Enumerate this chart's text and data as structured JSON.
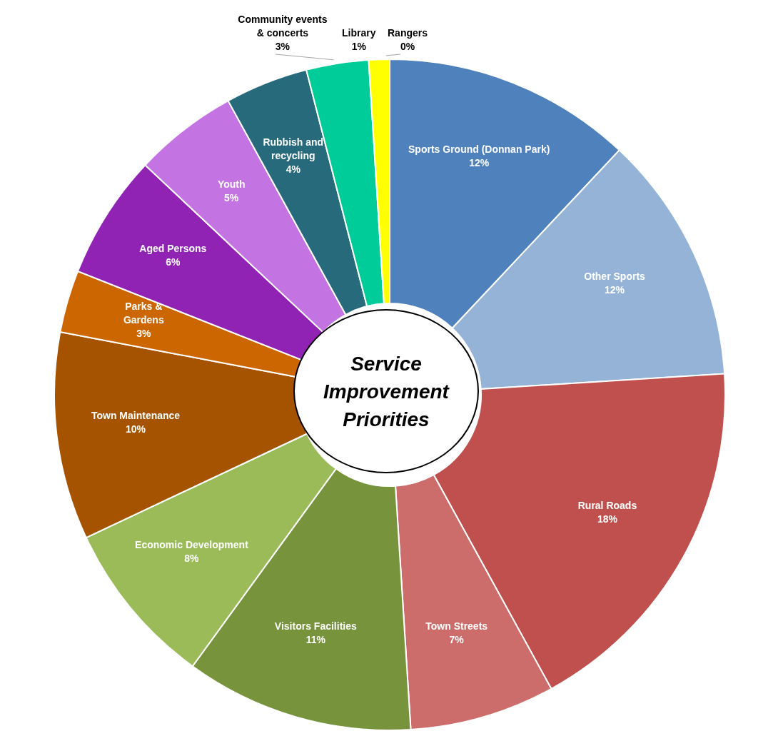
{
  "chart_data": {
    "type": "donut",
    "title": "Service Improvement Priorities",
    "categories": [
      "Sports Ground (Donnan Park)",
      "Other Sports",
      "Rural Roads",
      "Town Streets",
      "Visitors Facilities",
      "Economic Development",
      "Town Maintenance",
      "Parks & Gardens",
      "Aged Persons",
      "Youth",
      "Rubbish and recycling",
      "Community events & concerts",
      "Library",
      "Rangers"
    ],
    "values": [
      12,
      12,
      18,
      7,
      11,
      8,
      10,
      3,
      6,
      5,
      4,
      3,
      1,
      0
    ],
    "value_labels": [
      "12%",
      "12%",
      "18%",
      "7%",
      "11%",
      "8%",
      "10%",
      "3%",
      "6%",
      "5%",
      "4%",
      "3%",
      "1%",
      "0%"
    ],
    "colors": [
      "#4f81bd",
      "#95b3d7",
      "#c0504d",
      "#cd6d6b",
      "#77933c",
      "#9bbb59",
      "#a65300",
      "#cc6600",
      "#9022b4",
      "#c473e3",
      "#276a7c",
      "#00cc99",
      "#ffff00",
      "#ff33cc"
    ],
    "legend": false
  }
}
